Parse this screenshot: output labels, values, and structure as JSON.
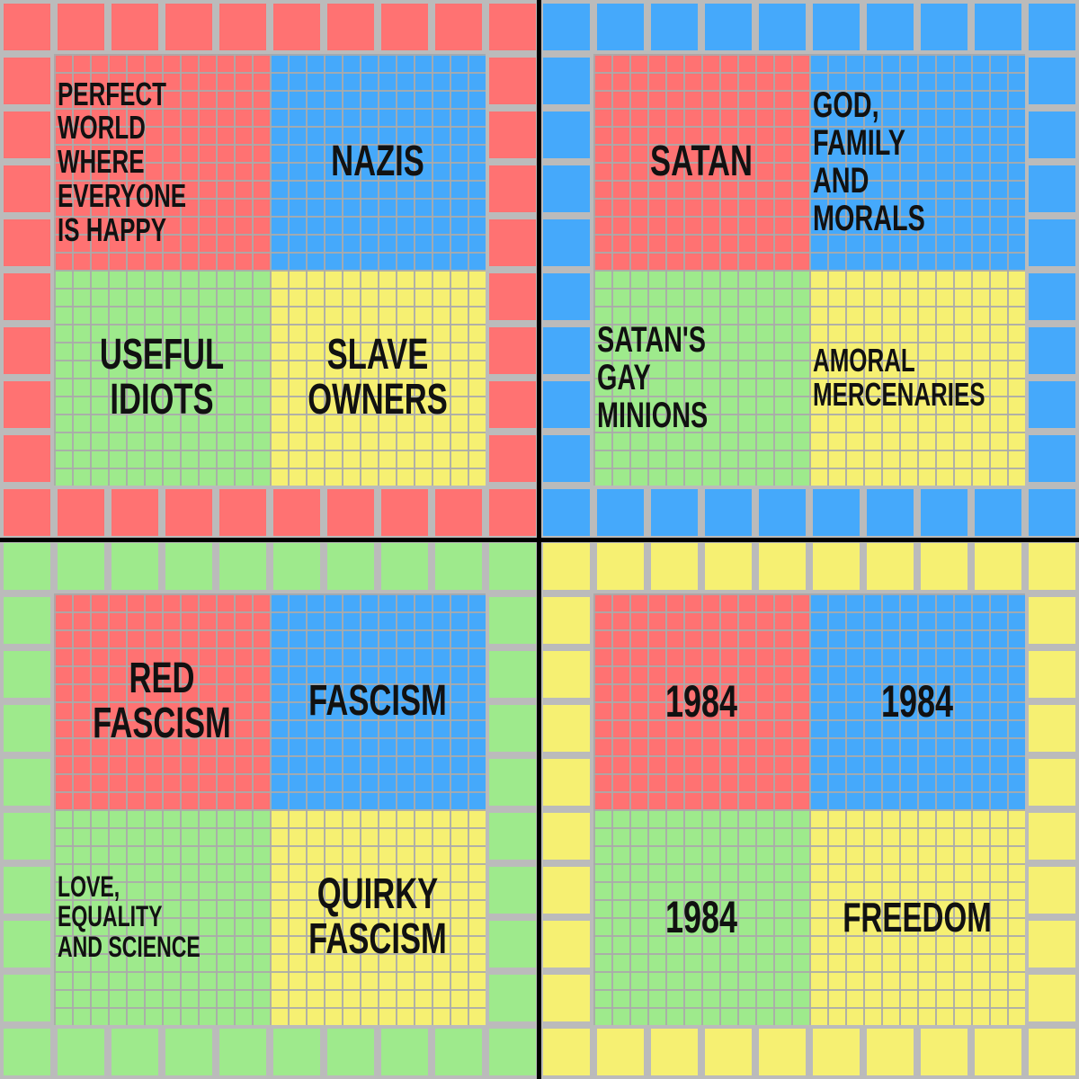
{
  "quadrants": [
    {
      "cells": [
        "PERFECT WORLD WHERE EVERYONE IS HAPPY",
        "NAZIS",
        "USEFUL IDIOTS",
        "SLAVE OWNERS"
      ]
    },
    {
      "cells": [
        "SATAN",
        "GOD, FAMILY AND MORALS",
        "SATAN'S GAY MINIONS",
        "AMORAL MERCENARIES"
      ]
    },
    {
      "cells": [
        "RED FASCISM",
        "FASCISM",
        "LOVE, EQUALITY AND SCIENCE",
        "QUIRKY FASCISM"
      ]
    },
    {
      "cells": [
        "1984",
        "1984",
        "1984",
        "FREEDOM"
      ]
    }
  ]
}
